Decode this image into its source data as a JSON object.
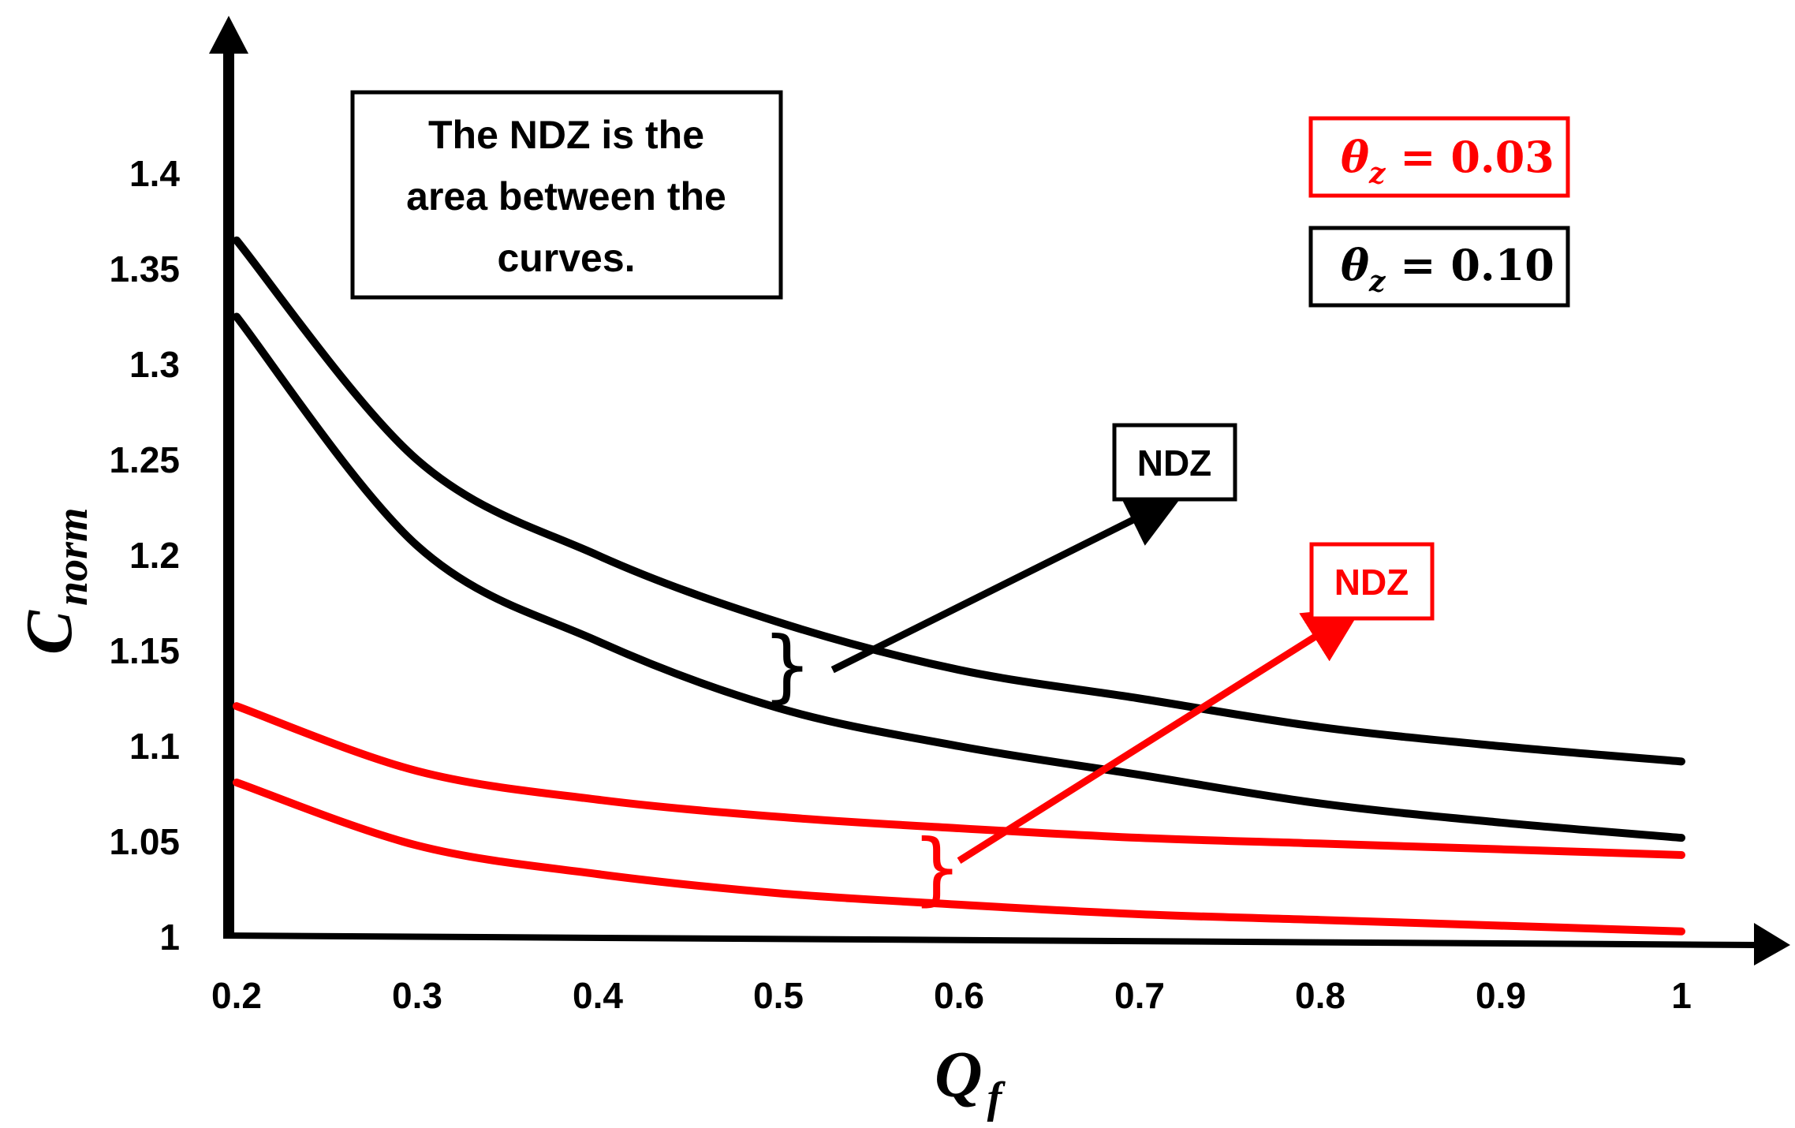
{
  "chart_data": {
    "type": "line",
    "title": "",
    "xlabel": "Q",
    "xlabel_sub": "f",
    "ylabel": "C",
    "ylabel_sub": "norm",
    "xlim": [
      0.2,
      1
    ],
    "ylim": [
      1,
      1.45
    ],
    "x_ticks": [
      "0.2",
      "0.3",
      "0.4",
      "0.5",
      "0.6",
      "0.7",
      "0.8",
      "0.9",
      "1"
    ],
    "y_ticks": [
      "1",
      "1.05",
      "1.1",
      "1.15",
      "1.2",
      "1.25",
      "1.3",
      "1.35",
      "1.4"
    ],
    "x": [
      0.2,
      0.3,
      0.4,
      0.5,
      0.6,
      0.7,
      0.8,
      0.9,
      1.0
    ],
    "series": [
      {
        "name": "θz = 0.10 upper",
        "color": "#000000",
        "values": [
          1.365,
          1.25,
          1.2,
          1.165,
          1.14,
          1.125,
          1.11,
          1.1,
          1.092
        ]
      },
      {
        "name": "θz = 0.10 lower",
        "color": "#000000",
        "values": [
          1.325,
          1.205,
          1.155,
          1.12,
          1.1,
          1.085,
          1.07,
          1.06,
          1.052
        ]
      },
      {
        "name": "θz = 0.03 upper",
        "color": "#ff0000",
        "values": [
          1.121,
          1.087,
          1.072,
          1.063,
          1.057,
          1.052,
          1.049,
          1.046,
          1.043
        ]
      },
      {
        "name": "θz = 0.03 lower",
        "color": "#ff0000",
        "values": [
          1.081,
          1.048,
          1.033,
          1.023,
          1.017,
          1.012,
          1.009,
          1.006,
          1.003
        ]
      }
    ],
    "legend": [
      {
        "label": "θ",
        "sub": "z",
        "eq": " = 0.03",
        "color": "#ff0000"
      },
      {
        "label": "θ",
        "sub": "z",
        "eq": " = 0.10",
        "color": "#000000"
      }
    ],
    "annotations": {
      "info_lines": [
        "The NDZ is the",
        "area between the",
        "curves."
      ],
      "ndz_black": "NDZ",
      "ndz_red": "NDZ",
      "ndz_black_anchor": [
        0.53,
        1.14
      ],
      "ndz_black_target": [
        0.71,
        1.225
      ],
      "ndz_red_anchor": [
        0.6,
        1.04
      ],
      "ndz_red_target": [
        0.81,
        1.165
      ]
    }
  }
}
